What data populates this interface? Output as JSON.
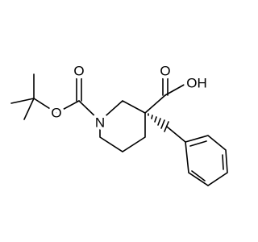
{
  "atoms": [
    {
      "label": "O"
    },
    {
      "label": "O"
    },
    {
      "label": "N"
    },
    {
      "label": "O"
    },
    {
      "label": "OH"
    }
  ]
}
